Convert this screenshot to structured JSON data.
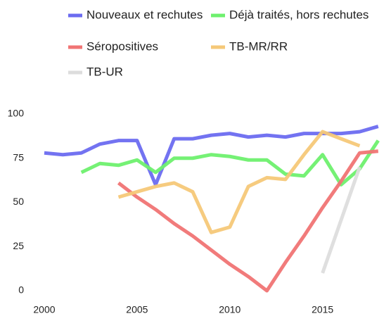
{
  "chart_data": {
    "type": "line",
    "x": [
      2000,
      2001,
      2002,
      2003,
      2004,
      2005,
      2006,
      2007,
      2008,
      2009,
      2010,
      2011,
      2012,
      2013,
      2014,
      2015,
      2016,
      2017,
      2018
    ],
    "series": [
      {
        "name": "Nouveaux et rechutes",
        "color": "#6b6bf0",
        "values": [
          78,
          77,
          78,
          83,
          85,
          85,
          60,
          86,
          86,
          88,
          89,
          87,
          88,
          87,
          89,
          89,
          89,
          90,
          93
        ]
      },
      {
        "name": "Déjà traités, hors rechutes",
        "color": "#6ef06e",
        "values": [
          null,
          null,
          67,
          72,
          71,
          74,
          67,
          75,
          75,
          77,
          76,
          74,
          74,
          66,
          65,
          77,
          60,
          69,
          85
        ]
      },
      {
        "name": "Séropositives",
        "color": "#f07474",
        "values": [
          null,
          null,
          null,
          null,
          61,
          53,
          46,
          38,
          31,
          23,
          15,
          8,
          0,
          16,
          31,
          47,
          62,
          78,
          79
        ]
      },
      {
        "name": "TB-MR/RR",
        "color": "#f5c878",
        "values": [
          null,
          null,
          null,
          null,
          53,
          56,
          59,
          61,
          56,
          33,
          36,
          59,
          64,
          63,
          77,
          90,
          86,
          82,
          null
        ]
      },
      {
        "name": "TB-UR",
        "color": "#dddddd",
        "values": [
          null,
          null,
          null,
          null,
          null,
          null,
          null,
          null,
          null,
          null,
          null,
          null,
          null,
          null,
          null,
          10,
          40,
          70,
          null
        ]
      }
    ],
    "xlim": [
      1999.3,
      2018.5
    ],
    "xticks": [
      2000,
      2005,
      2010,
      2015
    ],
    "ylim": [
      0,
      100
    ],
    "yticks": [
      0,
      25,
      50,
      75,
      100
    ],
    "grid": false
  }
}
